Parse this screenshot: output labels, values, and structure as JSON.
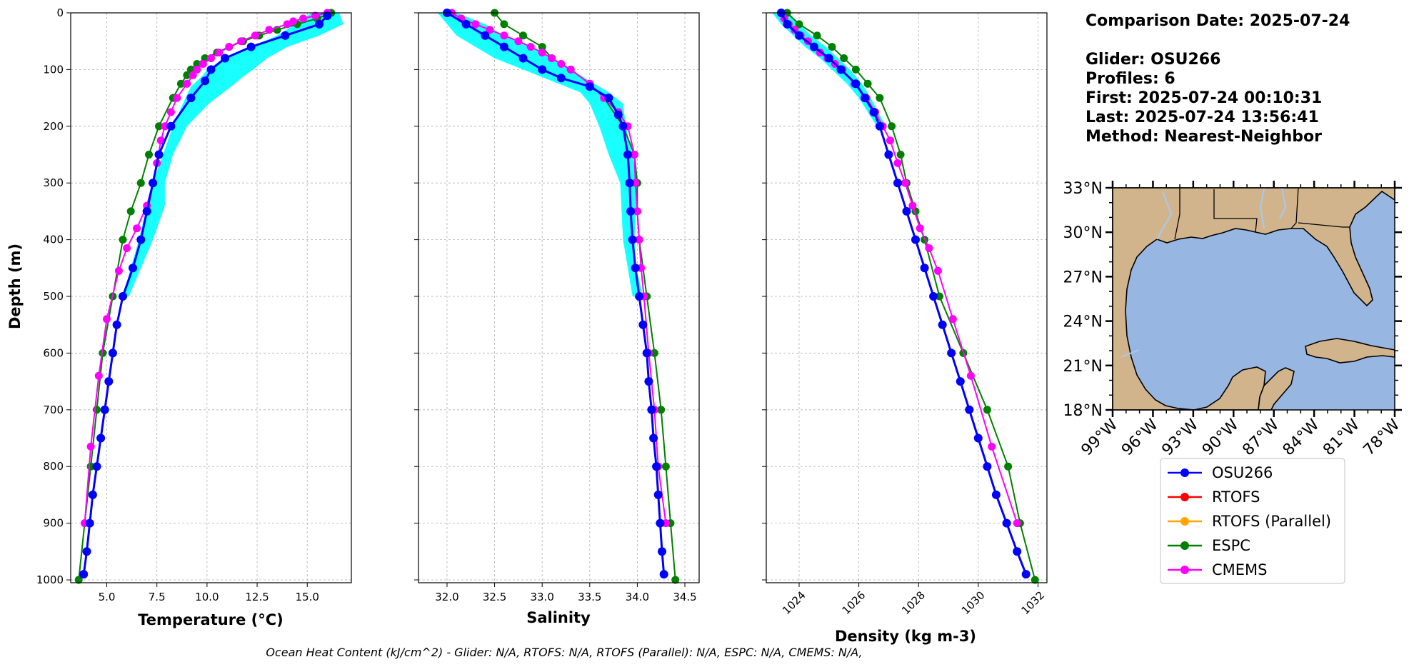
{
  "header": {
    "comparison": "Comparison Date: 2025-07-24",
    "lines": [
      "Glider: OSU266",
      "Profiles: 6",
      "First: 2025-07-24 00:10:31",
      "Last: 2025-07-24 13:56:41",
      "Method: Nearest-Neighbor"
    ]
  },
  "footer": "Ocean Heat Content (kJ/cm^2) - Glider: N/A,  RTOFS: N/A,  RTOFS (Parallel): N/A,  ESPC: N/A,  CMEMS: N/A,",
  "legend": [
    {
      "label": "OSU266",
      "color": "#0000ff"
    },
    {
      "label": "RTOFS",
      "color": "#ff0000"
    },
    {
      "label": "RTOFS (Parallel)",
      "color": "#ffa500"
    },
    {
      "label": "ESPC",
      "color": "#008000"
    },
    {
      "label": "CMEMS",
      "color": "#ff00ff"
    }
  ],
  "colors": {
    "glider_spread": "#00ffff",
    "land": "#d2b48c",
    "ocean": "#97b6e1",
    "rivers": "#a9c8e8"
  },
  "map": {
    "lat_labels": [
      "33°N",
      "30°N",
      "27°N",
      "24°N",
      "21°N",
      "18°N"
    ],
    "lon_labels": [
      "99°W",
      "96°W",
      "93°W",
      "90°W",
      "87°W",
      "84°W",
      "81°W",
      "78°W"
    ],
    "lon_range": [
      -99,
      -78
    ],
    "lat_range": [
      18,
      33
    ]
  },
  "chart_data": [
    {
      "type": "line",
      "xlabel": "Temperature (°C)",
      "ylabel": "Depth (m)",
      "xlim": [
        3.2,
        17.2
      ],
      "ylim": [
        1005,
        0
      ],
      "xticks": [
        "5.0",
        "7.5",
        "10.0",
        "12.5",
        "15.0"
      ],
      "xtick_values": [
        5.0,
        7.5,
        10.0,
        12.5,
        15.0
      ],
      "yticks": [
        "0",
        "100",
        "200",
        "300",
        "400",
        "500",
        "600",
        "700",
        "800",
        "900",
        "1000"
      ],
      "ytick_values": [
        0,
        100,
        200,
        300,
        400,
        500,
        600,
        700,
        800,
        900,
        1000
      ],
      "grid": true,
      "series": [
        {
          "name": "OSU266",
          "y": [
            5,
            20,
            40,
            60,
            80,
            100,
            120,
            150,
            200,
            250,
            300,
            350,
            400,
            450,
            500,
            550,
            600,
            650,
            700,
            750,
            800,
            850,
            900,
            950,
            990
          ],
          "x": [
            16.0,
            15.6,
            13.9,
            12.2,
            10.9,
            10.2,
            9.9,
            9.2,
            8.2,
            7.6,
            7.3,
            7.0,
            6.7,
            6.3,
            5.8,
            5.5,
            5.3,
            5.1,
            4.9,
            4.7,
            4.5,
            4.3,
            4.15,
            4.0,
            3.85
          ]
        },
        {
          "name": "ESPC",
          "y": [
            0,
            10,
            20,
            30,
            40,
            50,
            60,
            70,
            80,
            90,
            100,
            110,
            125,
            150,
            200,
            250,
            300,
            350,
            400,
            500,
            600,
            700,
            800,
            900,
            1000
          ],
          "x": [
            16.2,
            15.5,
            14.5,
            13.5,
            12.6,
            11.8,
            11.1,
            10.5,
            9.9,
            9.5,
            9.2,
            9.0,
            8.7,
            8.3,
            7.6,
            7.1,
            6.7,
            6.2,
            5.8,
            5.3,
            4.8,
            4.5,
            4.2,
            3.9,
            3.6
          ]
        },
        {
          "name": "CMEMS",
          "y": [
            0,
            5,
            10,
            15,
            20,
            30,
            40,
            50,
            60,
            70,
            80,
            90,
            100,
            110,
            125,
            150,
            175,
            200,
            225,
            265,
            300,
            340,
            380,
            415,
            455,
            540,
            640,
            765,
            900
          ],
          "x": [
            16.0,
            15.4,
            14.8,
            14.3,
            14.0,
            13.1,
            12.4,
            11.7,
            11.1,
            10.6,
            10.2,
            9.8,
            9.5,
            9.3,
            9.0,
            8.5,
            8.2,
            7.9,
            7.7,
            7.5,
            7.3,
            7.0,
            6.5,
            6.0,
            5.6,
            5.0,
            4.6,
            4.2,
            3.9
          ]
        }
      ],
      "spread": {
        "y": [
          0,
          20,
          40,
          60,
          80,
          100,
          110,
          130,
          160,
          200,
          250,
          300,
          340,
          400,
          450,
          500
        ],
        "x_min": [
          15.2,
          14.4,
          13.5,
          12.2,
          10.9,
          10.0,
          9.8,
          9.2,
          8.8,
          8.3,
          7.8,
          7.3,
          7.0,
          6.6,
          6.2,
          5.8
        ],
        "x_max": [
          16.6,
          16.8,
          15.6,
          14.0,
          13.0,
          12.3,
          11.9,
          11.2,
          10.1,
          9.0,
          8.3,
          7.9,
          7.9,
          7.3,
          6.7,
          6.1
        ]
      }
    },
    {
      "type": "line",
      "xlabel": "Salinity",
      "xlim": [
        31.7,
        34.65
      ],
      "ylim": [
        1005,
        0
      ],
      "xticks": [
        "32.0",
        "32.5",
        "33.0",
        "33.5",
        "34.0",
        "34.5"
      ],
      "xtick_values": [
        32.0,
        32.5,
        33.0,
        33.5,
        34.0,
        34.5
      ],
      "grid": true,
      "series": [
        {
          "name": "OSU266",
          "y": [
            0,
            20,
            40,
            60,
            80,
            100,
            115,
            130,
            150,
            180,
            200,
            250,
            300,
            350,
            400,
            450,
            500,
            550,
            600,
            650,
            700,
            750,
            800,
            850,
            900,
            950,
            990
          ],
          "x": [
            32.0,
            32.2,
            32.4,
            32.6,
            32.8,
            33.0,
            33.2,
            33.5,
            33.7,
            33.8,
            33.85,
            33.9,
            33.92,
            33.93,
            33.95,
            33.98,
            34.02,
            34.06,
            34.1,
            34.12,
            34.15,
            34.17,
            34.2,
            34.22,
            34.24,
            34.26,
            34.28
          ]
        },
        {
          "name": "ESPC",
          "y": [
            0,
            20,
            40,
            60,
            80,
            100,
            125,
            150,
            200,
            250,
            300,
            350,
            400,
            500,
            600,
            700,
            800,
            900,
            1000
          ],
          "x": [
            32.5,
            32.6,
            32.8,
            33.0,
            33.1,
            33.3,
            33.5,
            33.65,
            33.85,
            33.97,
            34.0,
            34.0,
            34.02,
            34.1,
            34.18,
            34.25,
            34.3,
            34.35,
            34.4
          ]
        },
        {
          "name": "CMEMS",
          "y": [
            0,
            10,
            20,
            30,
            40,
            50,
            60,
            70,
            80,
            90,
            100,
            125,
            150,
            175,
            200,
            250,
            300,
            350,
            400,
            450,
            500,
            600,
            700,
            800,
            900
          ],
          "x": [
            32.05,
            32.15,
            32.3,
            32.45,
            32.6,
            32.75,
            32.88,
            33.0,
            33.1,
            33.2,
            33.3,
            33.5,
            33.65,
            33.8,
            33.9,
            33.97,
            33.98,
            34.0,
            34.02,
            34.04,
            34.07,
            34.12,
            34.18,
            34.22,
            34.3
          ]
        }
      ],
      "spread": {
        "y": [
          0,
          20,
          40,
          60,
          80,
          100,
          120,
          140,
          160,
          200,
          250,
          300,
          400,
          450,
          500
        ],
        "x_min": [
          31.9,
          32.0,
          32.1,
          32.3,
          32.5,
          32.8,
          33.1,
          33.4,
          33.5,
          33.6,
          33.7,
          33.82,
          33.85,
          33.9,
          33.95
        ],
        "x_max": [
          32.1,
          32.4,
          32.6,
          32.9,
          33.1,
          33.3,
          33.5,
          33.7,
          33.85,
          33.88,
          33.95,
          34.0,
          33.97,
          33.99,
          34.06
        ]
      }
    },
    {
      "type": "line",
      "xlabel": "Density (kg m-3)",
      "xlim": [
        1022.9,
        1032.3
      ],
      "ylim": [
        1005,
        0
      ],
      "xticks": [
        "1024",
        "1026",
        "1028",
        "1030",
        "1032"
      ],
      "xtick_values": [
        1024,
        1026,
        1028,
        1030,
        1032
      ],
      "grid": true,
      "series": [
        {
          "name": "OSU266",
          "y": [
            0,
            20,
            40,
            60,
            80,
            100,
            125,
            150,
            175,
            200,
            250,
            300,
            350,
            400,
            450,
            500,
            550,
            600,
            650,
            700,
            750,
            800,
            850,
            900,
            950,
            990
          ],
          "x": [
            1023.4,
            1023.6,
            1024.0,
            1024.5,
            1025.0,
            1025.4,
            1025.9,
            1026.2,
            1026.5,
            1026.7,
            1027.0,
            1027.3,
            1027.6,
            1027.9,
            1028.2,
            1028.5,
            1028.8,
            1029.1,
            1029.4,
            1029.7,
            1030.0,
            1030.3,
            1030.6,
            1030.95,
            1031.3,
            1031.6
          ]
        },
        {
          "name": "ESPC",
          "y": [
            0,
            20,
            40,
            60,
            80,
            100,
            125,
            150,
            200,
            250,
            300,
            350,
            400,
            500,
            600,
            700,
            800,
            900,
            1000
          ],
          "x": [
            1023.6,
            1024.0,
            1024.6,
            1025.1,
            1025.5,
            1025.9,
            1026.3,
            1026.7,
            1027.1,
            1027.4,
            1027.6,
            1027.9,
            1028.2,
            1028.7,
            1029.5,
            1030.3,
            1031.0,
            1031.4,
            1031.9
          ]
        },
        {
          "name": "CMEMS",
          "y": [
            0,
            10,
            20,
            30,
            40,
            50,
            60,
            70,
            80,
            90,
            100,
            125,
            150,
            175,
            200,
            225,
            265,
            300,
            340,
            380,
            415,
            455,
            540,
            640,
            765,
            900
          ],
          "x": [
            1023.4,
            1023.5,
            1023.65,
            1023.85,
            1024.05,
            1024.3,
            1024.5,
            1024.7,
            1024.95,
            1025.2,
            1025.45,
            1025.85,
            1026.25,
            1026.55,
            1026.8,
            1027.05,
            1027.3,
            1027.55,
            1027.8,
            1028.05,
            1028.35,
            1028.65,
            1029.15,
            1029.75,
            1030.45,
            1031.3
          ]
        }
      ],
      "spread": {
        "y": [
          0,
          20,
          40,
          60,
          80,
          100,
          125,
          150,
          200
        ],
        "x_min": [
          1023.1,
          1023.4,
          1023.8,
          1024.2,
          1024.7,
          1025.1,
          1025.6,
          1026.0,
          1026.6
        ],
        "x_max": [
          1023.6,
          1024.0,
          1024.4,
          1024.9,
          1025.3,
          1025.7,
          1026.1,
          1026.4,
          1026.9
        ]
      }
    }
  ]
}
